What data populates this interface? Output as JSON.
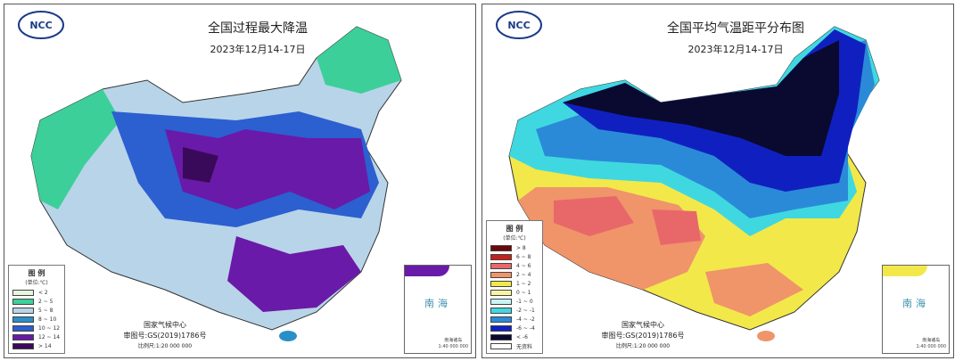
{
  "left_map": {
    "title": "全国过程最大降温",
    "date": "2023年12月14-17日",
    "logo_text": "NCC",
    "legend": {
      "title": "图 例",
      "unit": "(单位:℃)",
      "items": [
        {
          "label": "< 2",
          "color": "#e6f7dc"
        },
        {
          "label": "2 ~ 5",
          "color": "#3ccf9a"
        },
        {
          "label": "5 ~ 8",
          "color": "#b8d4e8"
        },
        {
          "label": "8 ~ 10",
          "color": "#2a8fc8"
        },
        {
          "label": "10 ~ 12",
          "color": "#2c5fd0"
        },
        {
          "label": "12 ~ 14",
          "color": "#6a1aa8"
        },
        {
          "label": "> 14",
          "color": "#3a0a5a"
        }
      ]
    },
    "credit": {
      "org": "国家气候中心",
      "approval": "审图号:GS(2019)1786号",
      "scale": "比例尺:1:20 000 000"
    },
    "inset": {
      "sea": "南海",
      "caption": "南海诸岛",
      "scale": "1:40 000 000"
    }
  },
  "right_map": {
    "title": "全国平均气温距平分布图",
    "date": "2023年12月14-17日",
    "logo_text": "NCC",
    "legend": {
      "title": "图 例",
      "unit": "(单位:℃)",
      "items": [
        {
          "label": "> 8",
          "color": "#6a0a0a"
        },
        {
          "label": "6 ~ 8",
          "color": "#c8201c"
        },
        {
          "label": "4 ~ 6",
          "color": "#e8686a"
        },
        {
          "label": "2 ~ 4",
          "color": "#f0946a"
        },
        {
          "label": "1 ~ 2",
          "color": "#f2e84a"
        },
        {
          "label": "0 ~ 1",
          "color": "#f8f4a0"
        },
        {
          "label": "-1 ~ 0",
          "color": "#c8f4f4"
        },
        {
          "label": "-2 ~ -1",
          "color": "#40d8e0"
        },
        {
          "label": "-4 ~ -2",
          "color": "#2a8ad8"
        },
        {
          "label": "-6 ~ -4",
          "color": "#1020c0"
        },
        {
          "label": "< -6",
          "color": "#0a0a30"
        },
        {
          "label": "无资料",
          "color": "#ffffff"
        }
      ]
    },
    "credit": {
      "org": "国家气候中心",
      "approval": "审图号:GS(2019)1786号",
      "scale": "比例尺:1:20 000 000"
    },
    "inset": {
      "sea": "南海",
      "caption": "南海诸岛",
      "scale": "1:40 000 000"
    }
  }
}
